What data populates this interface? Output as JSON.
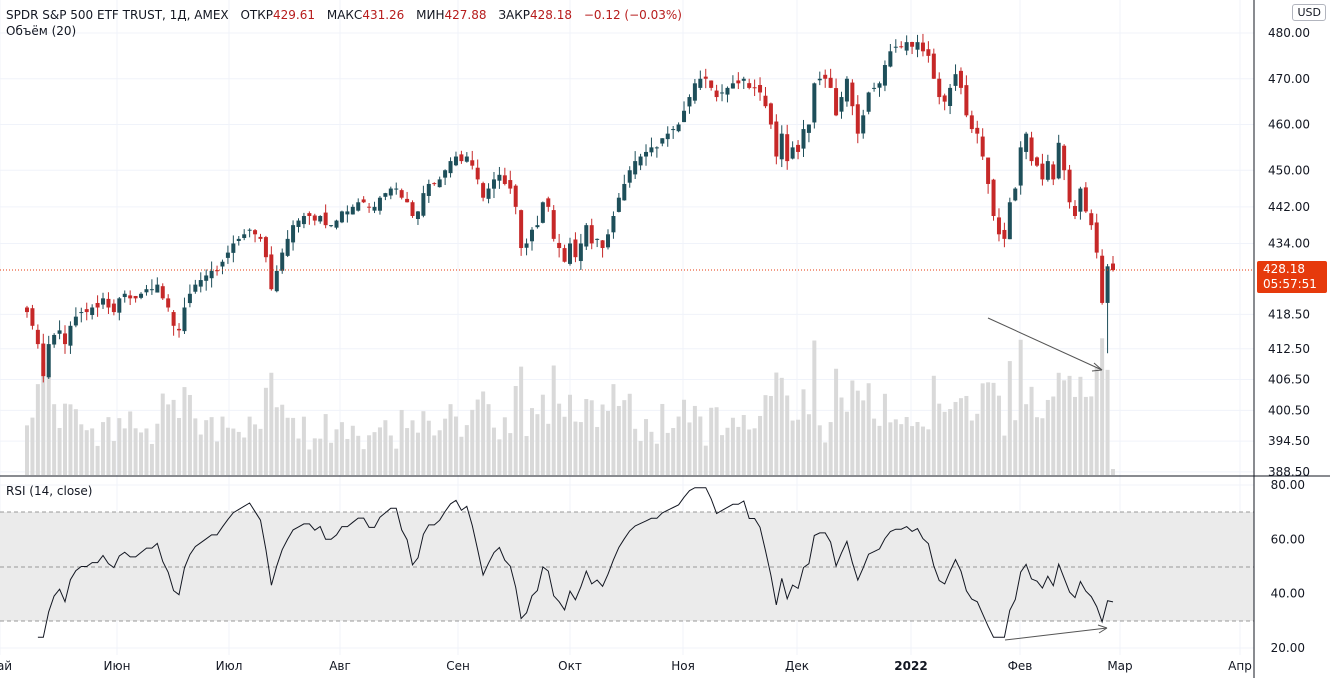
{
  "header": {
    "symbol": "SPDR S&P 500 ETF TRUST, 1Д, AMEX",
    "open_label": "ОТКР",
    "open": "429.61",
    "high_label": "МАКС",
    "high": "431.26",
    "low_label": "МИН",
    "low": "427.88",
    "close_label": "ЗАКР",
    "close": "428.18",
    "change": "−0.12 (−0.03%)",
    "volume_label": "Объём (20)",
    "currency": "USD"
  },
  "last_price": {
    "price": "428.18",
    "countdown": "05:57:51"
  },
  "rsi": {
    "label": "RSI (14, close)"
  },
  "colors": {
    "up": "#26a69a_dark",
    "up_fill": "#1e4f5a",
    "down": "#c62828",
    "price_line": "#e63a0c",
    "volume": "#d9d9d9",
    "rsi_band": "#ebebeb"
  },
  "chart_data": {
    "type": "candlestick",
    "title": "SPDR S&P 500 ETF TRUST, 1Д, AMEX",
    "price_ticks": [
      "480.00",
      "470.00",
      "460.00",
      "450.00",
      "442.00",
      "434.00",
      "418.50",
      "412.50",
      "406.50",
      "400.50",
      "394.50",
      "388.50"
    ],
    "price_range": [
      388.5,
      480
    ],
    "rsi_ticks": [
      "80.00",
      "60.00",
      "40.00",
      "20.00"
    ],
    "rsi_range": [
      20,
      80
    ],
    "rsi_bands": [
      30,
      50,
      70
    ],
    "time_ticks": [
      "май",
      "Июн",
      "Июл",
      "Авг",
      "Сен",
      "Окт",
      "Ноя",
      "Дек",
      "2022",
      "Фев",
      "Мар",
      "Апр"
    ],
    "closes": [
      419,
      416,
      412,
      405,
      412,
      414,
      415,
      412,
      416,
      418,
      419,
      419,
      420,
      420,
      422,
      420,
      419,
      422,
      423,
      422,
      422,
      423,
      424,
      424,
      425,
      422,
      420,
      416,
      415,
      420,
      423,
      425,
      426,
      427,
      428,
      428,
      430,
      432,
      434,
      435,
      436,
      437,
      436,
      435,
      431,
      424,
      428,
      432,
      435,
      438,
      439,
      440,
      440,
      439,
      440,
      438,
      438,
      439,
      441,
      441,
      442,
      443,
      443,
      442,
      442,
      444,
      445,
      446,
      446,
      444,
      443,
      440,
      441,
      445,
      447,
      447,
      448,
      450,
      452,
      453,
      452,
      453,
      451,
      448,
      444,
      446,
      448,
      449,
      447,
      446,
      442,
      433,
      434,
      437,
      438,
      443,
      442,
      435,
      433,
      430,
      434,
      431,
      434,
      438,
      434,
      435,
      433,
      436,
      440,
      444,
      447,
      450,
      452,
      453,
      454,
      455,
      455,
      457,
      458,
      459,
      460,
      463,
      466,
      469,
      470,
      470,
      468,
      466,
      467,
      468,
      469,
      469,
      470,
      468,
      468,
      467,
      464,
      460,
      453,
      458,
      452,
      455,
      454,
      459,
      460,
      469,
      470,
      470,
      468,
      462,
      466,
      470,
      464,
      458,
      462,
      467,
      468,
      469,
      473,
      476,
      477,
      477,
      478,
      477,
      478,
      476,
      475,
      470,
      466,
      465,
      468,
      471,
      468,
      462,
      459,
      458,
      453,
      447,
      440,
      436,
      435,
      443,
      446,
      455,
      458,
      452,
      451,
      448,
      452,
      448,
      456,
      450,
      443,
      440,
      446,
      441,
      438,
      432,
      421,
      429,
      428.18
    ],
    "last_candle": {
      "open": 429.61,
      "high": 431.26,
      "low": 427.88,
      "close": 428.18
    }
  }
}
